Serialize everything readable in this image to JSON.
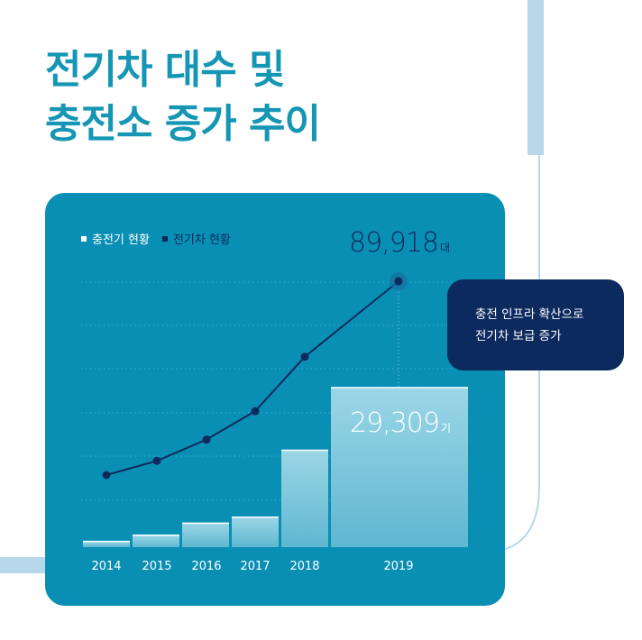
{
  "title": {
    "line1": "전기차 대수 및",
    "line2": "충전소 증가 추이"
  },
  "legend": {
    "charger": "충전기 현황",
    "ev": "전기차 현황"
  },
  "callout": {
    "line1": "충전 인프라 확산으로",
    "line2": "전기차 보급 증가"
  },
  "highlight": {
    "ev_value": "89,918",
    "ev_unit": "대",
    "charger_value": "29,309",
    "charger_unit": "기"
  },
  "colors": {
    "title": "#1596b4",
    "card": "#0a8fb4",
    "ev_line": "#0d2a5e",
    "callout_bg": "#0d2a5e",
    "bar_top": "#9bd6e6",
    "bar_bottom": "#5fb7d1",
    "deco_blue": "#b7d8ea"
  },
  "chart_data": {
    "type": "bar",
    "categories": [
      "2014",
      "2015",
      "2016",
      "2017",
      "2018",
      "2019"
    ],
    "series": [
      {
        "name": "충전기 현황",
        "type": "bar",
        "values": [
          1050,
          2200,
          4400,
          5500,
          17800,
          29309
        ]
      },
      {
        "name": "전기차 현황",
        "type": "line",
        "values": [
          8000,
          14000,
          23000,
          35000,
          58000,
          89918
        ]
      }
    ],
    "title": "전기차 대수 및 충전소 증가 추이",
    "grid": true,
    "legend_position": "top-left",
    "annotations": [
      "89,918대",
      "29,309기",
      "충전 인프라 확산으로 전기차 보급 증가"
    ]
  }
}
